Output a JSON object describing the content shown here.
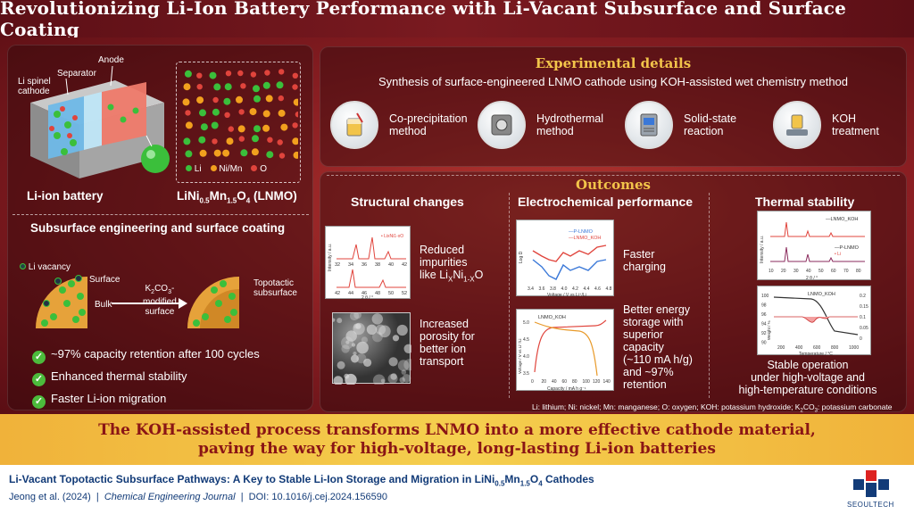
{
  "title": "Revolutionizing Li-Ion Battery Performance with Li-Vacant Subsurface and Surface Coating",
  "left": {
    "battery_labels": {
      "anode": "Anode",
      "separator": "Separator",
      "cathode_line1": "Li spinel",
      "cathode_line2": "cathode"
    },
    "battery_caption": "Li-ion battery",
    "lnmo_legend": {
      "li": "Li",
      "nimn": "Ni/Mn",
      "o": "O"
    },
    "lnmo_caption": {
      "pre": "LiNi",
      "sub1": "0.5",
      "mid": "Mn",
      "sub2": "1.5",
      "o": "O",
      "sub3": "4",
      "post": " (LNMO)"
    },
    "subsurface_title": "Subsurface engineering and surface coating",
    "labels": {
      "li_vacancy": "Li vacancy",
      "surface": "Surface",
      "bulk": "Bulk",
      "k2co3_pre": "K",
      "k2co3_sub": "2",
      "k2co3_co": "CO",
      "k2co3_sub2": "3",
      "k2co3_post": "-",
      "modified": "modified",
      "surface_word": "surface",
      "topotactic1": "Topotactic",
      "topotactic2": "subsurface"
    },
    "benefits": [
      "~97% capacity retention after 100 cycles",
      "Enhanced thermal stability",
      "Faster Li-ion migration"
    ]
  },
  "experimental": {
    "heading": "Experimental details",
    "subtitle": "Synthesis of surface-engineered LNMO cathode using KOH-assisted wet chemistry method",
    "steps": [
      {
        "l1": "Co-precipitation",
        "l2": "method",
        "icon": "beaker-icon"
      },
      {
        "l1": "Hydrothermal",
        "l2": "method",
        "icon": "autoclave-icon"
      },
      {
        "l1": "Solid-state",
        "l2": "reaction",
        "icon": "furnace-icon"
      },
      {
        "l1": "KOH",
        "l2": "treatment",
        "icon": "stirrer-icon"
      }
    ]
  },
  "outcomes": {
    "heading": "Outcomes",
    "structural": {
      "title": "Structural changes",
      "impurities_l1": "Reduced",
      "impurities_l2": "impurities",
      "impurities_l3_pre": "like Li",
      "impurities_sub1": "X",
      "impurities_mid": "Ni",
      "impurities_sub2": "1-X",
      "impurities_post": "O",
      "porosity": [
        "Increased",
        "porosity for",
        "better ion",
        "transport"
      ],
      "xrd_ylabel": "Intensity / a.u.",
      "xrd_xlabel": "2 θ / °",
      "xrd_legend": "Li",
      "xrd_legend_sub1": "x",
      "xrd_legend_mid": "Ni",
      "xrd_legend_sub2": "1-x",
      "xrd_legend_post": "O",
      "xrd_top_ticks": [
        "32",
        "34",
        "36",
        "38",
        "40",
        "42"
      ],
      "xrd_bot_ticks": [
        "42",
        "44",
        "46",
        "48",
        "50",
        "52"
      ]
    },
    "electrochemical": {
      "title": "Electrochemical performance",
      "legend": [
        "P-LNMO",
        "LNMO_KOH"
      ],
      "faster": [
        "Faster",
        "charging"
      ],
      "better": [
        "Better energy",
        "storage with",
        "superior",
        "capacity",
        "(~110 mA h/g)",
        "and ~97%",
        "retention"
      ],
      "d_ylabel": "Log D",
      "d_xlabel": "Voltage / V vs Li⁺/Li",
      "d_xticks": [
        "3.4",
        "3.6",
        "3.8",
        "4.0",
        "4.2",
        "4.4",
        "4.6",
        "4.8"
      ],
      "cap_title": "LNMO_KOH",
      "cap_ylabel": "Voltage / V vs Li⁺/Li",
      "cap_xlabel": "Capacity / mA h g⁻¹",
      "cap_xticks": [
        "0",
        "20",
        "40",
        "60",
        "80",
        "100",
        "120",
        "140"
      ],
      "cap_yticks": [
        "5.0",
        "4.5",
        "4.0",
        "3.5"
      ]
    },
    "thermal": {
      "title": "Thermal stability",
      "xrd_legend": [
        "LNMO_KOH",
        "P-LNMO"
      ],
      "impurity_legend": "Li",
      "xrd_ylabel": "Intensity / a.u.",
      "xrd_xlabel": "2 θ / °",
      "xrd_xticks": [
        "10",
        "20",
        "30",
        "40",
        "50",
        "60",
        "70",
        "80"
      ],
      "tga_title": "LNMO_KOH",
      "tga_ylabel": "Weight / %",
      "tga_xlabel": "Temperature / °C",
      "tga_yticks": [
        "100",
        "98",
        "96",
        "94",
        "92",
        "90"
      ],
      "tga_xticks": [
        "200",
        "400",
        "600",
        "800",
        "1000"
      ],
      "tga_y2ticks": [
        "0.2",
        "0.15",
        "0.1",
        "0.05",
        "0"
      ],
      "caption": [
        "Stable operation",
        "under high-voltage and",
        "high-temperature conditions"
      ]
    },
    "footnote_pre": "Li: lithium; Ni: nickel; Mn: manganese; O: oxygen; KOH: potassium hydroxide; K",
    "footnote_sub1": "2",
    "footnote_co": "CO",
    "footnote_sub2": "3",
    "footnote_post": ": potassium carbonate"
  },
  "conclusion": [
    "The KOH-assisted process transforms LNMO into a more effective cathode material,",
    "paving the way for high-voltage, long-lasting Li-ion batteries"
  ],
  "reference": {
    "title_pre": "Li-Vacant Topotactic Subsurface Pathways: A Key to Stable Li-Ion Storage and Migration in LiNi",
    "title_sub1": "0.5",
    "title_mid": "Mn",
    "title_sub2": "1.5",
    "title_o": "O",
    "title_sub3": "4",
    "title_post": " Cathodes",
    "authors": "Jeong et al. (2024)",
    "journal": "Chemical Engineering Journal",
    "doi": "DOI: 10.1016/j.cej.2024.156590",
    "logo_text": "SEOULTECH"
  },
  "colors": {
    "li": "#3bbf3b",
    "nimn": "#f2a01e",
    "o": "#e0443c",
    "gold": "#f2c44a",
    "curve_red": "#e0443c",
    "curve_blue": "#3a78d8"
  }
}
